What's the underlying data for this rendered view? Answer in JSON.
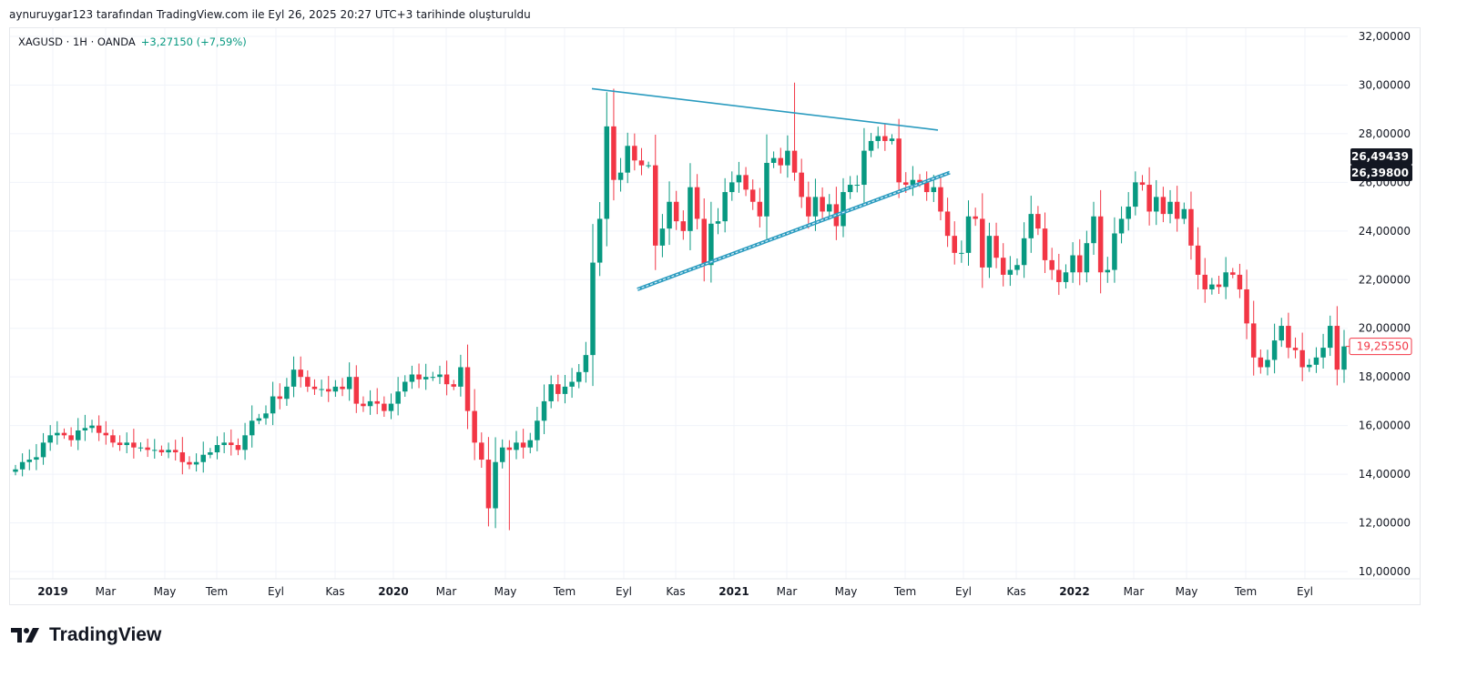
{
  "caption": "aynuruygar123 tarafından TradingView.com ile Eyl 26, 2025 20:27 UTC+3 tarihinde oluşturuldu",
  "legend": {
    "symbol": "XAGUSD · 1H · OANDA",
    "change": "+3,27150 (+7,59%)"
  },
  "logo": {
    "text": "TradingView"
  },
  "colors": {
    "up": "#089981",
    "down": "#f23645",
    "trendline": "#2a9bbf",
    "grid": "#f0f3fa"
  },
  "chart_data": {
    "type": "candlestick",
    "ylim": [
      10,
      32
    ],
    "y_ticks": [
      "10,00000",
      "12,00000",
      "14,00000",
      "16,00000",
      "18,00000",
      "20,00000",
      "22,00000",
      "24,00000",
      "26,00000",
      "28,00000",
      "30,00000",
      "32,00000"
    ],
    "x_ticks": [
      "2019",
      "Mar",
      "May",
      "Tem",
      "Eyl",
      "Kas",
      "2020",
      "Mar",
      "May",
      "Tem",
      "Eyl",
      "Kas",
      "2021",
      "Mar",
      "May",
      "Tem",
      "Eyl",
      "Kas",
      "2022",
      "Mar",
      "May",
      "Tem",
      "Eyl"
    ],
    "grid": true,
    "closes": [
      14.2,
      14.5,
      14.6,
      14.7,
      15.3,
      15.6,
      15.7,
      15.6,
      15.4,
      15.8,
      15.9,
      16.0,
      15.7,
      15.6,
      15.3,
      15.2,
      15.3,
      15.1,
      15.1,
      15.0,
      15.0,
      14.9,
      15.0,
      14.9,
      14.5,
      14.4,
      14.5,
      14.8,
      14.9,
      15.2,
      15.3,
      15.2,
      15.0,
      15.6,
      16.2,
      16.3,
      16.5,
      17.2,
      17.1,
      17.6,
      18.3,
      18.0,
      17.6,
      17.5,
      17.5,
      17.4,
      17.6,
      17.5,
      18.0,
      16.9,
      16.8,
      17.0,
      16.9,
      16.6,
      16.9,
      17.4,
      17.8,
      18.1,
      17.9,
      18.0,
      18.0,
      18.1,
      17.7,
      17.6,
      18.4,
      16.6,
      15.3,
      14.6,
      12.6,
      14.5,
      15.1,
      15.0,
      15.3,
      15.1,
      15.4,
      16.2,
      17.0,
      17.7,
      17.3,
      17.6,
      17.8,
      18.2,
      18.9,
      22.7,
      24.5,
      28.3,
      26.1,
      26.4,
      27.5,
      26.9,
      26.7,
      26.7,
      23.4,
      24.1,
      25.2,
      24.4,
      24.0,
      25.8,
      24.5,
      22.6,
      24.3,
      24.4,
      25.6,
      26.0,
      26.3,
      25.7,
      25.2,
      24.6,
      26.8,
      27.0,
      26.7,
      27.3,
      26.4,
      25.4,
      24.6,
      25.4,
      24.8,
      25.1,
      24.2,
      25.6,
      25.9,
      25.9,
      27.3,
      27.7,
      27.9,
      27.7,
      27.8,
      26.0,
      25.9,
      26.1,
      26.0,
      25.6,
      25.8,
      24.8,
      23.8,
      23.1,
      23.1,
      24.6,
      24.5,
      22.5,
      23.8,
      22.9,
      22.2,
      22.4,
      22.6,
      23.7,
      24.7,
      24.1,
      22.8,
      22.4,
      21.9,
      22.3,
      23.0,
      22.3,
      23.5,
      24.6,
      22.3,
      22.4,
      23.9,
      24.5,
      25.0,
      26.0,
      25.9,
      24.8,
      25.4,
      24.7,
      25.2,
      24.5,
      24.9,
      23.4,
      22.2,
      21.6,
      21.8,
      21.7,
      22.3,
      22.2,
      21.6,
      20.2,
      18.8,
      18.4,
      18.7,
      19.5,
      20.1,
      19.2,
      19.1,
      18.4,
      18.5,
      18.8,
      19.2,
      20.1,
      18.3,
      19.2555
    ],
    "first_open": 14.1,
    "all_time_high_shown": 30.1,
    "low_shown": 11.7,
    "trendlines": [
      {
        "name": "upper",
        "from_price": 29.85,
        "to_price": 28.15
      },
      {
        "name": "lower",
        "from_price": 21.6,
        "to_price": 26.4
      }
    ],
    "price_labels": [
      {
        "value": "26,49439",
        "price": 26.49439,
        "style": "dark"
      },
      {
        "value": "26,39800",
        "price": 26.398,
        "style": "dark"
      },
      {
        "value": "19,25550",
        "price": 19.2555,
        "style": "current"
      }
    ]
  }
}
